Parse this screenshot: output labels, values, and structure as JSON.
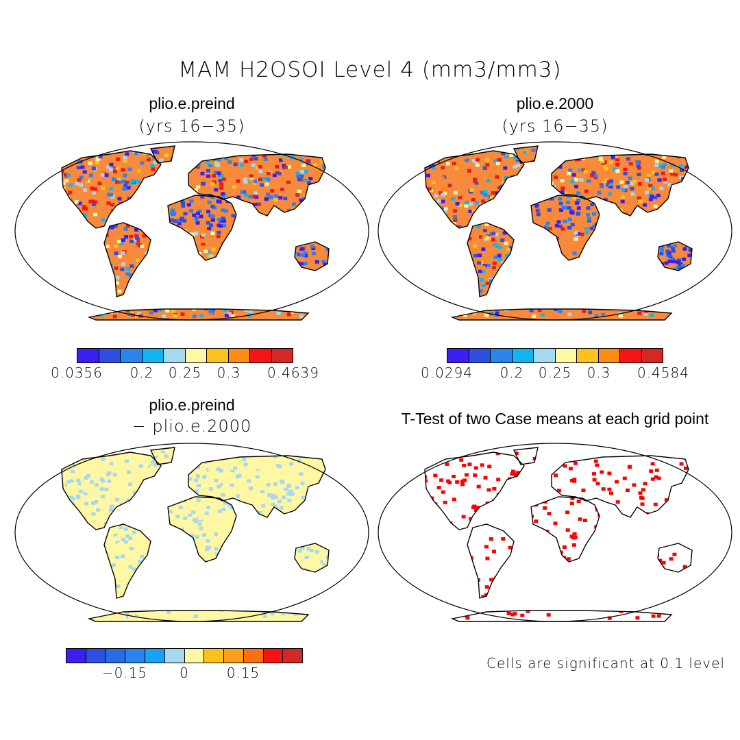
{
  "main_title": "MAM H2OSOI Level 4 (mm3/mm3)",
  "panels": {
    "tl": {
      "title": "plio.e.preind",
      "subtitle": "(yrs 16−35)"
    },
    "tr": {
      "title": "plio.e.2000",
      "subtitle": "(yrs 16−35)"
    },
    "bl": {
      "title": "plio.e.preind",
      "subtitle": "− plio.e.2000"
    },
    "br": {
      "title": "T-Test of two Case means at each grid point"
    }
  },
  "colorbars": {
    "tl": {
      "colors": [
        "#3b1ef0",
        "#2f4fe0",
        "#2a84ec",
        "#14b4f0",
        "#a6d8ee",
        "#fff7a3",
        "#fbc21e",
        "#fa8c14",
        "#f51414",
        "#d42826"
      ],
      "ticks": [
        "0.0356",
        "0.2",
        "0.25",
        "0.3",
        "0.4639"
      ]
    },
    "tr": {
      "colors": [
        "#3b1ef0",
        "#2f4fe0",
        "#2a84ec",
        "#14b4f0",
        "#a6d8ee",
        "#fff7a3",
        "#fbc21e",
        "#fa8c14",
        "#f51414",
        "#d42826"
      ],
      "ticks": [
        "0.0294",
        "0.2",
        "0.25",
        "0.3",
        "0.4584"
      ]
    },
    "bl": {
      "colors": [
        "#3b1ef0",
        "#2f4fe0",
        "#2a6be6",
        "#2a84ec",
        "#14a4f0",
        "#a6d8ee",
        "#fff7a3",
        "#fbc21e",
        "#fba01e",
        "#fa6e14",
        "#f51414",
        "#d42826"
      ],
      "ticks": [
        "−0.15",
        "0",
        "0.15"
      ]
    }
  },
  "note": "Cells are significant at 0.1 level",
  "significance_color": "#ff0000"
}
